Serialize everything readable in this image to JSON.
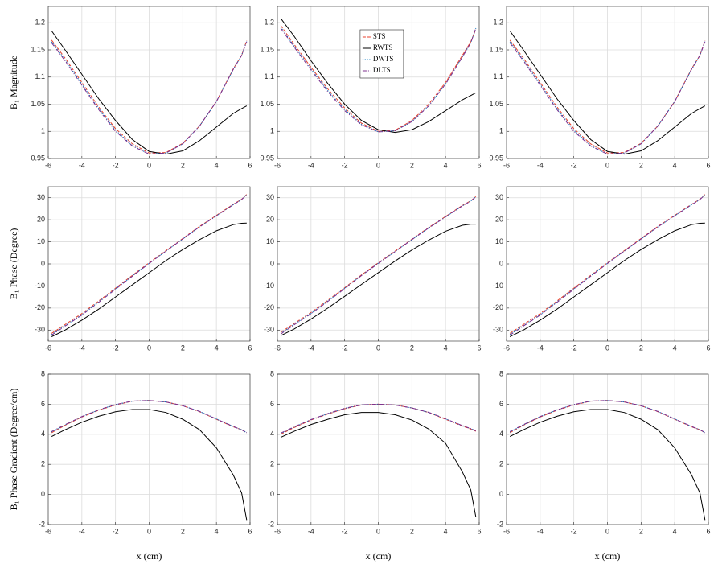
{
  "chart_data": [
    {
      "type": "line",
      "ylabel": "B₁ Magnitude",
      "x": [
        -5.8,
        -5,
        -4,
        -3,
        -2,
        -1,
        0,
        1,
        2,
        3,
        4,
        5,
        5.5,
        5.8
      ],
      "xlim": [
        -6,
        6
      ],
      "xticks": [
        -6,
        -4,
        -2,
        0,
        2,
        4,
        6
      ],
      "ylim": [
        0.95,
        1.23
      ],
      "yticks": [
        0.95,
        1,
        1.05,
        1.1,
        1.15,
        1.2
      ],
      "grid": true,
      "series": [
        {
          "color": "#e8412c",
          "style": "dash",
          "values": [
            1.168,
            1.135,
            1.09,
            1.045,
            1.005,
            0.977,
            0.96,
            0.961,
            0.978,
            1.01,
            1.055,
            1.115,
            1.14,
            1.167
          ]
        },
        {
          "color": "#000000",
          "style": "solid",
          "values": [
            1.185,
            1.15,
            1.105,
            1.06,
            1.02,
            0.985,
            0.963,
            0.958,
            0.964,
            0.983,
            1.008,
            1.033,
            1.042,
            1.047
          ]
        },
        {
          "color": "#0072bd",
          "style": "dot",
          "values": [
            1.165,
            1.132,
            1.087,
            1.042,
            1.002,
            0.974,
            0.958,
            0.96,
            0.977,
            1.01,
            1.055,
            1.114,
            1.14,
            1.166
          ]
        },
        {
          "color": "#7e2f8e",
          "style": "dashdot",
          "values": [
            1.163,
            1.13,
            1.085,
            1.04,
            1.0,
            0.973,
            0.958,
            0.96,
            0.977,
            1.01,
            1.055,
            1.114,
            1.14,
            1.165
          ]
        }
      ]
    },
    {
      "type": "line",
      "legend": "top",
      "x": [
        -5.8,
        -5,
        -4,
        -3,
        -2,
        -1,
        0,
        1,
        2,
        3,
        4,
        5,
        5.5,
        5.8
      ],
      "xlim": [
        -6,
        6
      ],
      "xticks": [
        -6,
        -4,
        -2,
        0,
        2,
        4,
        6
      ],
      "ylim": [
        0.95,
        1.23
      ],
      "yticks": [
        0.95,
        1,
        1.05,
        1.1,
        1.15,
        1.2
      ],
      "grid": true,
      "series": [
        {
          "name": "STS",
          "color": "#e8412c",
          "style": "dash",
          "values": [
            1.195,
            1.16,
            1.118,
            1.078,
            1.043,
            1.015,
            1.0,
            1.002,
            1.02,
            1.05,
            1.09,
            1.14,
            1.165,
            1.188
          ]
        },
        {
          "name": "RWTS",
          "color": "#000000",
          "style": "solid",
          "values": [
            1.208,
            1.175,
            1.13,
            1.088,
            1.05,
            1.02,
            1.003,
            0.998,
            1.003,
            1.018,
            1.038,
            1.058,
            1.066,
            1.071
          ]
        },
        {
          "name": "DWTS",
          "color": "#0072bd",
          "style": "dot",
          "values": [
            1.192,
            1.157,
            1.115,
            1.075,
            1.04,
            1.013,
            0.999,
            1.001,
            1.018,
            1.047,
            1.087,
            1.137,
            1.163,
            1.19
          ]
        },
        {
          "name": "DLTS",
          "color": "#7e2f8e",
          "style": "dashdot",
          "values": [
            1.19,
            1.155,
            1.113,
            1.073,
            1.038,
            1.012,
            0.999,
            1.001,
            1.018,
            1.047,
            1.087,
            1.137,
            1.163,
            1.19
          ]
        }
      ]
    },
    {
      "type": "line",
      "x": [
        -5.8,
        -5,
        -4,
        -3,
        -2,
        -1,
        0,
        1,
        2,
        3,
        4,
        5,
        5.5,
        5.8
      ],
      "xlim": [
        -6,
        6
      ],
      "xticks": [
        -6,
        -4,
        -2,
        0,
        2,
        4,
        6
      ],
      "ylim": [
        0.95,
        1.23
      ],
      "yticks": [
        0.95,
        1,
        1.05,
        1.1,
        1.15,
        1.2
      ],
      "grid": true,
      "series": [
        {
          "color": "#e8412c",
          "style": "dash",
          "values": [
            1.168,
            1.135,
            1.09,
            1.045,
            1.005,
            0.977,
            0.96,
            0.961,
            0.978,
            1.01,
            1.055,
            1.115,
            1.14,
            1.167
          ]
        },
        {
          "color": "#000000",
          "style": "solid",
          "values": [
            1.185,
            1.15,
            1.105,
            1.06,
            1.02,
            0.985,
            0.963,
            0.958,
            0.964,
            0.983,
            1.008,
            1.033,
            1.042,
            1.047
          ]
        },
        {
          "color": "#0072bd",
          "style": "dot",
          "values": [
            1.165,
            1.132,
            1.087,
            1.042,
            1.002,
            0.974,
            0.958,
            0.96,
            0.977,
            1.01,
            1.055,
            1.114,
            1.14,
            1.166
          ]
        },
        {
          "color": "#7e2f8e",
          "style": "dashdot",
          "values": [
            1.163,
            1.13,
            1.085,
            1.04,
            1.0,
            0.973,
            0.958,
            0.96,
            0.977,
            1.01,
            1.055,
            1.114,
            1.14,
            1.165
          ]
        }
      ]
    },
    {
      "type": "line",
      "ylabel": "B₁ Phase (Degree)",
      "x": [
        -5.8,
        -5,
        -4,
        -3,
        -2,
        -1,
        0,
        1,
        2,
        3,
        4,
        5,
        5.5,
        5.8
      ],
      "xlim": [
        -6,
        6
      ],
      "xticks": [
        -6,
        -4,
        -2,
        0,
        2,
        4,
        6
      ],
      "ylim": [
        -35,
        35
      ],
      "yticks": [
        -30,
        -20,
        -10,
        0,
        10,
        20,
        30
      ],
      "grid": true,
      "series": [
        {
          "color": "#e8412c",
          "style": "dash",
          "values": [
            -31.5,
            -27.5,
            -22.5,
            -16.8,
            -11.0,
            -5.2,
            0.5,
            6.0,
            11.5,
            17.0,
            22.0,
            27.0,
            29.3,
            31.5
          ]
        },
        {
          "color": "#000000",
          "style": "solid",
          "values": [
            -33.0,
            -30.0,
            -25.5,
            -20.5,
            -15.0,
            -9.5,
            -4.0,
            1.5,
            6.5,
            11.0,
            15.0,
            17.8,
            18.4,
            18.5
          ]
        },
        {
          "color": "#0072bd",
          "style": "dot",
          "values": [
            -32,
            -28,
            -23,
            -17.2,
            -11.3,
            -5.5,
            0.3,
            5.8,
            11.3,
            16.8,
            21.8,
            26.8,
            29.2,
            31.3
          ]
        },
        {
          "color": "#7e2f8e",
          "style": "dashdot",
          "values": [
            -32.3,
            -28.2,
            -23.2,
            -17.4,
            -11.5,
            -5.6,
            0.2,
            5.8,
            11.3,
            16.8,
            21.8,
            26.8,
            29.2,
            31.3
          ]
        }
      ]
    },
    {
      "type": "line",
      "x": [
        -5.8,
        -5,
        -4,
        -3,
        -2,
        -1,
        0,
        1,
        2,
        3,
        4,
        5,
        5.5,
        5.8
      ],
      "xlim": [
        -6,
        6
      ],
      "xticks": [
        -6,
        -4,
        -2,
        0,
        2,
        4,
        6
      ],
      "ylim": [
        -35,
        35
      ],
      "yticks": [
        -30,
        -20,
        -10,
        0,
        10,
        20,
        30
      ],
      "grid": true,
      "series": [
        {
          "color": "#e8412c",
          "style": "dash",
          "values": [
            -31,
            -27,
            -22,
            -16.5,
            -10.8,
            -5.0,
            0.5,
            5.8,
            11.2,
            16.5,
            21.5,
            26.5,
            28.6,
            30.5
          ]
        },
        {
          "color": "#000000",
          "style": "solid",
          "values": [
            -32.5,
            -29.5,
            -25,
            -20,
            -14.7,
            -9.3,
            -4,
            1.3,
            6.3,
            10.8,
            14.8,
            17.5,
            18.0,
            18.0
          ]
        },
        {
          "color": "#0072bd",
          "style": "dot",
          "values": [
            -31.5,
            -27.4,
            -22.4,
            -16.8,
            -11.0,
            -5.2,
            0.3,
            5.6,
            11.0,
            16.3,
            21.3,
            26.3,
            28.5,
            30.4
          ]
        },
        {
          "color": "#7e2f8e",
          "style": "dashdot",
          "values": [
            -31.8,
            -27.6,
            -22.6,
            -17.0,
            -11.2,
            -5.3,
            0.2,
            5.6,
            11.0,
            16.3,
            21.3,
            26.3,
            28.5,
            30.4
          ]
        }
      ]
    },
    {
      "type": "line",
      "x": [
        -5.8,
        -5,
        -4,
        -3,
        -2,
        -1,
        0,
        1,
        2,
        3,
        4,
        5,
        5.5,
        5.8
      ],
      "xlim": [
        -6,
        6
      ],
      "xticks": [
        -6,
        -4,
        -2,
        0,
        2,
        4,
        6
      ],
      "ylim": [
        -35,
        35
      ],
      "yticks": [
        -30,
        -20,
        -10,
        0,
        10,
        20,
        30
      ],
      "grid": true,
      "series": [
        {
          "color": "#e8412c",
          "style": "dash",
          "values": [
            -31.5,
            -27.5,
            -22.5,
            -16.8,
            -11.0,
            -5.2,
            0.5,
            6.0,
            11.5,
            17.0,
            22.0,
            27.0,
            29.3,
            31.5
          ]
        },
        {
          "color": "#000000",
          "style": "solid",
          "values": [
            -33.0,
            -30.0,
            -25.5,
            -20.5,
            -15.0,
            -9.5,
            -4.0,
            1.5,
            6.5,
            11.0,
            15.0,
            17.8,
            18.4,
            18.5
          ]
        },
        {
          "color": "#0072bd",
          "style": "dot",
          "values": [
            -32,
            -28,
            -23,
            -17.2,
            -11.3,
            -5.5,
            0.3,
            5.8,
            11.3,
            16.8,
            21.8,
            26.8,
            29.2,
            31.3
          ]
        },
        {
          "color": "#7e2f8e",
          "style": "dashdot",
          "values": [
            -32.3,
            -28.2,
            -23.2,
            -17.4,
            -11.5,
            -5.6,
            0.2,
            5.8,
            11.3,
            16.8,
            21.8,
            26.8,
            29.2,
            31.3
          ]
        }
      ]
    },
    {
      "type": "line",
      "ylabel": "B₁ Phase Gradient (Degree/cm)",
      "xlabel": "x (cm)",
      "x": [
        -5.8,
        -5,
        -4,
        -3,
        -2,
        -1,
        0,
        1,
        2,
        3,
        4,
        5,
        5.5,
        5.8
      ],
      "xlim": [
        -6,
        6
      ],
      "xticks": [
        -6,
        -4,
        -2,
        0,
        2,
        4,
        6
      ],
      "ylim": [
        -2,
        8
      ],
      "yticks": [
        -2,
        0,
        2,
        4,
        6,
        8
      ],
      "grid": true,
      "series": [
        {
          "color": "#e8412c",
          "style": "dash",
          "values": [
            4.1,
            4.6,
            5.15,
            5.6,
            5.95,
            6.2,
            6.25,
            6.15,
            5.9,
            5.5,
            5.0,
            4.5,
            4.3,
            4.1
          ]
        },
        {
          "color": "#000000",
          "style": "solid",
          "values": [
            3.85,
            4.3,
            4.8,
            5.2,
            5.5,
            5.65,
            5.65,
            5.45,
            5.0,
            4.3,
            3.1,
            1.3,
            0.1,
            -1.7
          ]
        },
        {
          "color": "#0072bd",
          "style": "dot",
          "values": [
            4.15,
            4.62,
            5.17,
            5.62,
            5.97,
            6.2,
            6.25,
            6.15,
            5.9,
            5.52,
            5.02,
            4.52,
            4.3,
            4.1
          ]
        },
        {
          "color": "#7e2f8e",
          "style": "dashdot",
          "values": [
            4.18,
            4.64,
            5.18,
            5.63,
            5.98,
            6.21,
            6.25,
            6.15,
            5.9,
            5.52,
            5.02,
            4.52,
            4.3,
            4.12
          ]
        }
      ]
    },
    {
      "type": "line",
      "xlabel": "x (cm)",
      "x": [
        -5.8,
        -5,
        -4,
        -3,
        -2,
        -1,
        0,
        1,
        2,
        3,
        4,
        5,
        5.5,
        5.8
      ],
      "xlim": [
        -6,
        6
      ],
      "xticks": [
        -6,
        -4,
        -2,
        0,
        2,
        4,
        6
      ],
      "ylim": [
        -2,
        8
      ],
      "yticks": [
        -2,
        0,
        2,
        4,
        6,
        8
      ],
      "grid": true,
      "series": [
        {
          "color": "#e8412c",
          "style": "dash",
          "values": [
            4.0,
            4.45,
            4.95,
            5.35,
            5.7,
            5.95,
            6.0,
            5.95,
            5.75,
            5.45,
            5.0,
            4.55,
            4.35,
            4.2
          ]
        },
        {
          "color": "#000000",
          "style": "solid",
          "values": [
            3.8,
            4.2,
            4.65,
            5.0,
            5.3,
            5.45,
            5.45,
            5.3,
            4.95,
            4.35,
            3.4,
            1.5,
            0.3,
            -1.5
          ]
        },
        {
          "color": "#0072bd",
          "style": "dot",
          "values": [
            4.05,
            4.48,
            4.97,
            5.37,
            5.72,
            5.95,
            6.0,
            5.95,
            5.75,
            5.45,
            5.02,
            4.57,
            4.37,
            4.22
          ]
        },
        {
          "color": "#7e2f8e",
          "style": "dashdot",
          "values": [
            4.08,
            4.5,
            4.98,
            5.38,
            5.73,
            5.96,
            6.0,
            5.95,
            5.75,
            5.46,
            5.03,
            4.58,
            4.38,
            4.23
          ]
        }
      ]
    },
    {
      "type": "line",
      "xlabel": "x (cm)",
      "x": [
        -5.8,
        -5,
        -4,
        -3,
        -2,
        -1,
        0,
        1,
        2,
        3,
        4,
        5,
        5.5,
        5.8
      ],
      "xlim": [
        -6,
        6
      ],
      "xticks": [
        -6,
        -4,
        -2,
        0,
        2,
        4,
        6
      ],
      "ylim": [
        -2,
        8
      ],
      "yticks": [
        -2,
        0,
        2,
        4,
        6,
        8
      ],
      "grid": true,
      "series": [
        {
          "color": "#e8412c",
          "style": "dash",
          "values": [
            4.1,
            4.6,
            5.15,
            5.6,
            5.95,
            6.2,
            6.25,
            6.15,
            5.9,
            5.5,
            5.0,
            4.5,
            4.3,
            4.1
          ]
        },
        {
          "color": "#000000",
          "style": "solid",
          "values": [
            3.85,
            4.3,
            4.8,
            5.2,
            5.5,
            5.65,
            5.65,
            5.45,
            5.0,
            4.3,
            3.1,
            1.3,
            0.1,
            -1.7
          ]
        },
        {
          "color": "#0072bd",
          "style": "dot",
          "values": [
            4.15,
            4.62,
            5.17,
            5.62,
            5.97,
            6.2,
            6.25,
            6.15,
            5.9,
            5.52,
            5.02,
            4.52,
            4.3,
            4.1
          ]
        },
        {
          "color": "#7e2f8e",
          "style": "dashdot",
          "values": [
            4.18,
            4.64,
            5.18,
            5.63,
            5.98,
            6.21,
            6.25,
            6.15,
            5.9,
            5.52,
            5.02,
            4.52,
            4.3,
            4.12
          ]
        }
      ]
    }
  ]
}
